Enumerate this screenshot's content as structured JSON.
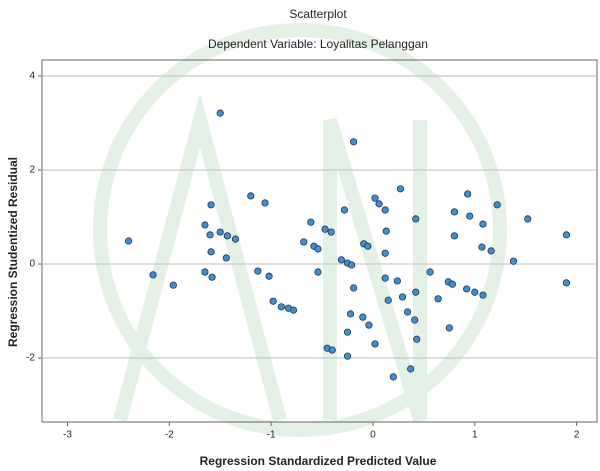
{
  "chart_data": {
    "type": "scatter",
    "title": "Scatterplot",
    "subtitle": "Dependent Variable: Loyalitas Pelanggan",
    "x_label": "Regression Standardized Predicted Value",
    "y_label": "Regression Studentized Residual",
    "color": "#3f8fd2",
    "grid": true,
    "xlim": [
      -3.25,
      2.2
    ],
    "ylim": [
      -3.36,
      4.34
    ],
    "xticks": [
      -3,
      -2,
      -1,
      0,
      1,
      2
    ],
    "yticks": [
      4,
      2,
      0,
      -2
    ],
    "x": [
      -2.4,
      -2.16,
      -1.96,
      -1.5,
      -1.59,
      -1.65,
      -1.6,
      -1.5,
      -1.43,
      -1.35,
      -1.59,
      -1.44,
      -1.65,
      -1.58,
      -1.2,
      -1.06,
      -1.13,
      -1.02,
      -0.98,
      -0.9,
      -0.83,
      -0.78,
      -0.68,
      -0.61,
      -0.58,
      -0.54,
      -0.47,
      -0.41,
      -0.54,
      -0.28,
      -0.31,
      -0.25,
      -0.21,
      -0.19,
      -0.45,
      -0.4,
      -0.25,
      -0.25,
      -0.22,
      -0.19,
      -0.1,
      -0.04,
      -0.09,
      -0.05,
      0.02,
      0.06,
      0.12,
      0.13,
      0.12,
      0.12,
      0.15,
      0.02,
      0.2,
      0.27,
      0.24,
      0.29,
      0.34,
      0.37,
      0.42,
      0.42,
      0.41,
      0.43,
      0.56,
      0.64,
      0.8,
      0.8,
      0.74,
      0.78,
      0.75,
      0.93,
      0.95,
      0.92,
      1.0,
      1.08,
      1.08,
      1.07,
      1.16,
      1.22,
      1.38,
      1.52,
      1.9,
      1.9
    ],
    "values": [
      0.49,
      -0.23,
      -0.45,
      3.21,
      1.26,
      0.83,
      0.62,
      0.68,
      0.6,
      0.53,
      0.26,
      0.13,
      -0.17,
      -0.28,
      1.45,
      1.3,
      -0.15,
      -0.26,
      -0.79,
      -0.91,
      -0.94,
      -0.98,
      0.47,
      0.89,
      0.38,
      0.32,
      0.74,
      0.68,
      -0.17,
      1.15,
      0.09,
      0.02,
      -0.02,
      2.6,
      -1.79,
      -1.83,
      -1.96,
      -1.45,
      -1.06,
      -0.51,
      -1.13,
      -1.3,
      0.43,
      0.38,
      1.4,
      1.28,
      1.15,
      0.7,
      0.23,
      -0.3,
      -0.77,
      -1.7,
      -2.4,
      1.6,
      -0.36,
      -0.7,
      -1.02,
      -2.23,
      0.96,
      -0.6,
      -1.19,
      -1.6,
      -0.17,
      -0.74,
      1.11,
      0.6,
      -0.38,
      -0.43,
      -1.36,
      1.49,
      1.02,
      -0.53,
      -0.6,
      -0.66,
      0.85,
      0.36,
      0.28,
      1.26,
      0.06,
      0.96,
      0.62,
      -0.4
    ]
  }
}
